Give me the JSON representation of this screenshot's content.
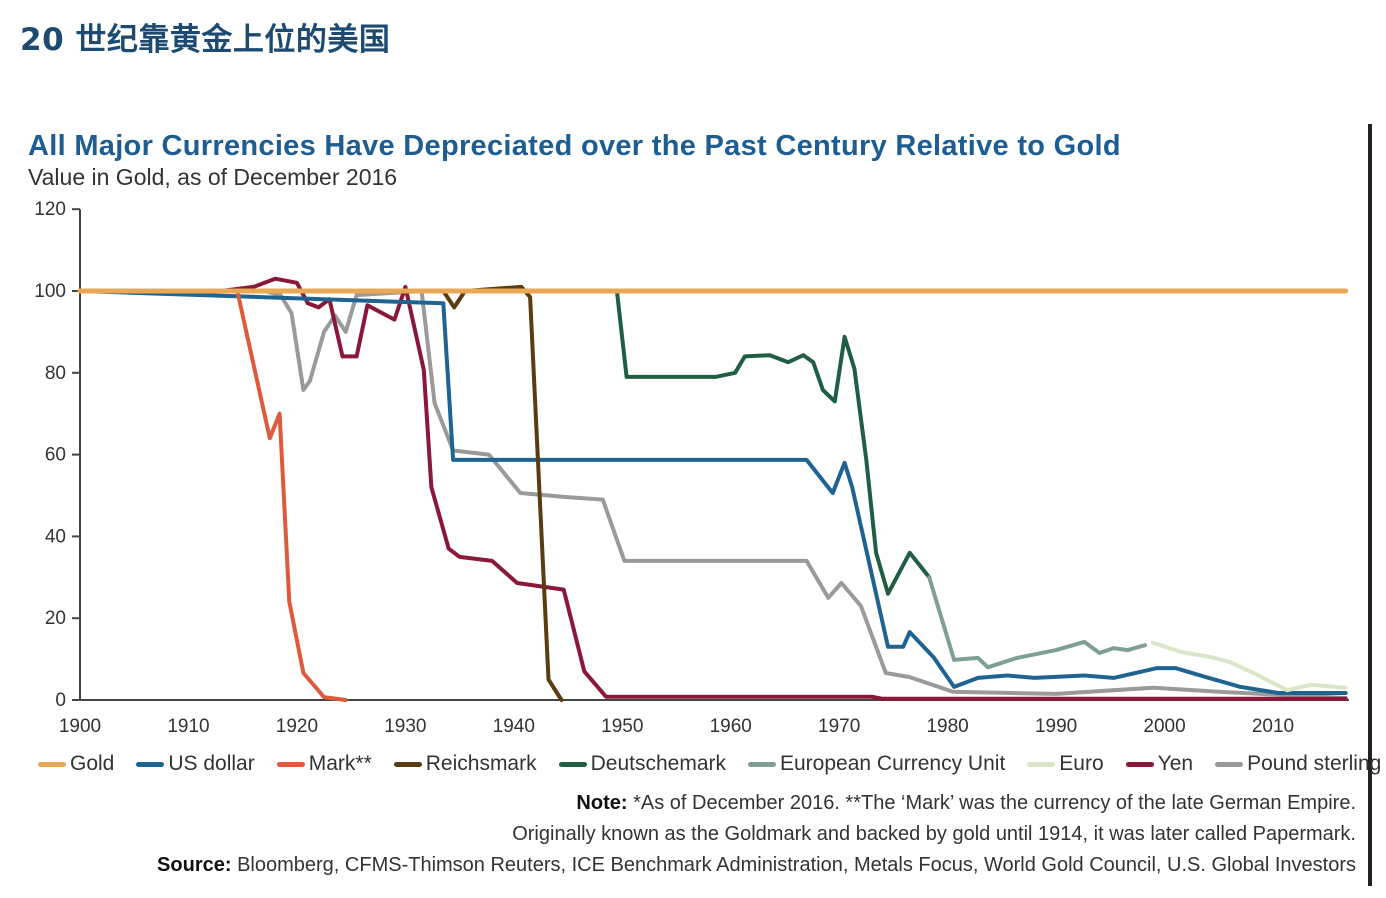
{
  "page": {
    "title": "20 世纪靠黄金上位的美国"
  },
  "notes": {
    "note_label": "Note:",
    "note_line1": "*As of December 2016. **The ‘Mark’ was the currency of the late German Empire.",
    "note_line2": "Originally known as the Goldmark and backed by gold until 1914, it was later called Papermark.",
    "source_label": "Source:",
    "source_text": "Bloomberg, CFMS-Thimson Reuters, ICE Benchmark Administration, Metals Focus, World Gold Council, U.S. Global Investors"
  },
  "chart_data": {
    "type": "line",
    "title": "All Major Currencies Have Depreciated over the Past Century Relative to Gold",
    "subtitle": "Value in Gold, as of December 2016",
    "xlabel": "",
    "ylabel": "",
    "xlim": [
      1900,
      2017
    ],
    "ylim": [
      0,
      120
    ],
    "x_ticks": [
      "1900",
      "1910",
      "1920",
      "1930",
      "1940",
      "1950",
      "1960",
      "1970",
      "1980",
      "1990",
      "2000",
      "2010"
    ],
    "y_ticks": [
      "0",
      "20",
      "40",
      "60",
      "80",
      "100",
      "120"
    ],
    "grid": false,
    "legend_placement": "bottom",
    "series": [
      {
        "name": "Gold",
        "color": "#e8a856",
        "points": [
          [
            1900,
            100
          ],
          [
            2016.7,
            100
          ]
        ]
      },
      {
        "name": "US dollar",
        "color": "#1f6391",
        "points": [
          [
            1900,
            100
          ],
          [
            1933.5,
            97
          ],
          [
            1934.4,
            58.7
          ],
          [
            1967,
            58.7
          ],
          [
            1969.4,
            50.6
          ],
          [
            1970.5,
            58
          ],
          [
            1971.2,
            52
          ],
          [
            1974.5,
            13
          ],
          [
            1975.9,
            13
          ],
          [
            1976.5,
            16.6
          ],
          [
            1978.7,
            10.5
          ],
          [
            1980.6,
            3.2
          ],
          [
            1982.8,
            5.4
          ],
          [
            1985.5,
            6
          ],
          [
            1988,
            5.4
          ],
          [
            1992.6,
            6
          ],
          [
            1995.3,
            5.4
          ],
          [
            1999.3,
            7.8
          ],
          [
            2001,
            7.8
          ],
          [
            2003.8,
            5.6
          ],
          [
            2007,
            3.2
          ],
          [
            2010.5,
            1.7
          ],
          [
            2016.7,
            1.7
          ]
        ]
      },
      {
        "name": "Mark**",
        "color": "#de5a3c",
        "points": [
          [
            1900,
            100
          ],
          [
            1914.5,
            100
          ],
          [
            1917.5,
            64
          ],
          [
            1918.4,
            70
          ],
          [
            1919.3,
            24
          ],
          [
            1920.6,
            6.6
          ],
          [
            1922.5,
            0.7
          ],
          [
            1924.5,
            0
          ]
        ]
      },
      {
        "name": "Reichsmark",
        "color": "#5a3b12",
        "points": [
          [
            1924,
            100
          ],
          [
            1933.5,
            100
          ],
          [
            1934.5,
            96
          ],
          [
            1935.5,
            100
          ],
          [
            1940.7,
            101
          ],
          [
            1941.5,
            98.5
          ],
          [
            1943.2,
            5
          ],
          [
            1944.4,
            0
          ]
        ]
      },
      {
        "name": "Deutschemark",
        "color": "#1f5e43",
        "points": [
          [
            1949.5,
            100
          ],
          [
            1950.4,
            79
          ],
          [
            1958.6,
            79
          ],
          [
            1960.4,
            80
          ],
          [
            1961.3,
            84
          ],
          [
            1963.6,
            84.3
          ],
          [
            1965.3,
            82.6
          ],
          [
            1966.7,
            84.3
          ],
          [
            1967.6,
            82.6
          ],
          [
            1968.5,
            75.8
          ],
          [
            1969.6,
            73
          ],
          [
            1970.5,
            88.8
          ],
          [
            1971.4,
            81
          ],
          [
            1972.5,
            58.7
          ],
          [
            1973.4,
            36
          ],
          [
            1974.5,
            26
          ],
          [
            1976.5,
            36
          ],
          [
            1978.3,
            30
          ]
        ]
      },
      {
        "name": "European Currency Unit",
        "color": "#7f9e94",
        "points": [
          [
            1978.3,
            30
          ],
          [
            1980.6,
            9.8
          ],
          [
            1982.8,
            10.3
          ],
          [
            1983.7,
            8
          ],
          [
            1986.4,
            10.3
          ],
          [
            1990,
            12.2
          ],
          [
            1992.6,
            14.2
          ],
          [
            1994,
            11.5
          ],
          [
            1995.3,
            12.7
          ],
          [
            1996.6,
            12.2
          ],
          [
            1998.2,
            13.4
          ]
        ]
      },
      {
        "name": "Euro",
        "color": "#dbe6c8",
        "points": [
          [
            1998.9,
            14
          ],
          [
            2001.6,
            11.7
          ],
          [
            2004.3,
            10.5
          ],
          [
            2006,
            9.3
          ],
          [
            2008.2,
            6.6
          ],
          [
            2011.3,
            2.4
          ],
          [
            2013.5,
            3.7
          ],
          [
            2016.7,
            3
          ]
        ]
      },
      {
        "name": "Yen",
        "color": "#8a1838",
        "points": [
          [
            1900,
            100
          ],
          [
            1913,
            100
          ],
          [
            1916,
            101
          ],
          [
            1918,
            103
          ],
          [
            1920,
            102
          ],
          [
            1921,
            97
          ],
          [
            1922,
            96
          ],
          [
            1923,
            98
          ],
          [
            1924.2,
            84
          ],
          [
            1925.5,
            84
          ],
          [
            1926.5,
            96.5
          ],
          [
            1929,
            93
          ],
          [
            1930,
            101
          ],
          [
            1931.7,
            80.7
          ],
          [
            1932.4,
            52
          ],
          [
            1934,
            37
          ],
          [
            1935,
            35
          ],
          [
            1938,
            34
          ],
          [
            1940.3,
            28.6
          ],
          [
            1944.6,
            27
          ],
          [
            1946.5,
            7
          ],
          [
            1948.5,
            0.8
          ],
          [
            1973,
            0.8
          ],
          [
            1974,
            0.3
          ],
          [
            2016.7,
            0.3
          ]
        ]
      },
      {
        "name": "Pound sterling",
        "color": "#9a9a9a",
        "points": [
          [
            1900,
            100
          ],
          [
            1917,
            100
          ],
          [
            1918.5,
            99
          ],
          [
            1919.5,
            94.6
          ],
          [
            1920.6,
            75.8
          ],
          [
            1921.2,
            78
          ],
          [
            1922.5,
            90
          ],
          [
            1923.5,
            94
          ],
          [
            1924.5,
            90
          ],
          [
            1925.5,
            99
          ],
          [
            1931.5,
            100
          ],
          [
            1932.7,
            72.6
          ],
          [
            1934.4,
            61
          ],
          [
            1937.7,
            60
          ],
          [
            1940.6,
            50.6
          ],
          [
            1944.9,
            49.6
          ],
          [
            1948.2,
            49
          ],
          [
            1950.2,
            34
          ],
          [
            1967,
            34
          ],
          [
            1969,
            25
          ],
          [
            1970.2,
            28.6
          ],
          [
            1972,
            23
          ],
          [
            1974.3,
            6.6
          ],
          [
            1976.5,
            5.6
          ],
          [
            1980.5,
            2
          ],
          [
            1990,
            1.5
          ],
          [
            1999,
            3
          ],
          [
            2005,
            2
          ],
          [
            2016.7,
            0.5
          ]
        ]
      }
    ]
  }
}
